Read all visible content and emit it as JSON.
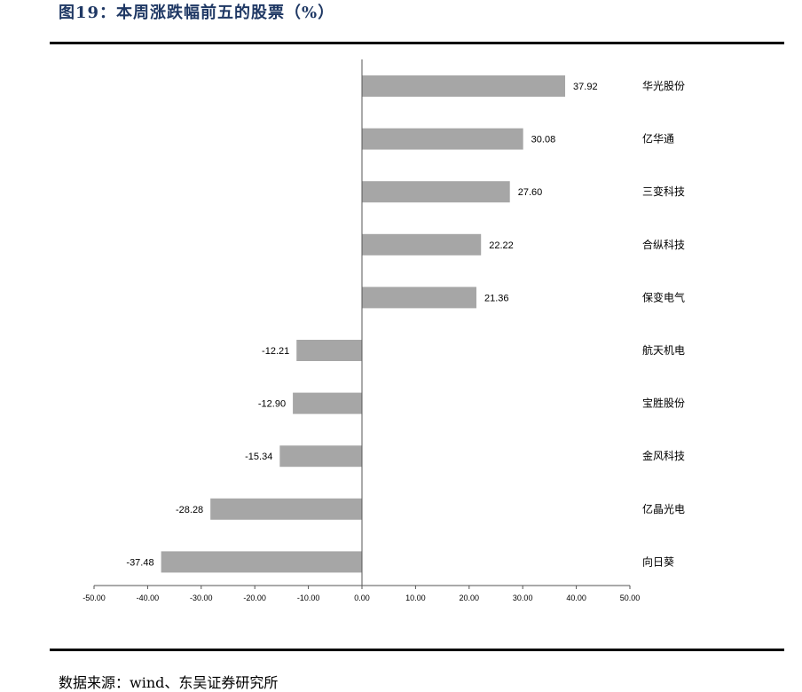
{
  "figure": {
    "title": "图19：本周涨跌幅前五的股票（%）",
    "source": "数据来源：wind、东吴证券研究所"
  },
  "chart_data": {
    "type": "bar",
    "orientation": "horizontal",
    "categories": [
      "华光股份",
      "亿华通",
      "三变科技",
      "合纵科技",
      "保变电气",
      "航天机电",
      "宝胜股份",
      "金风科技",
      "亿晶光电",
      "向日葵"
    ],
    "values": [
      37.92,
      30.08,
      27.6,
      22.22,
      21.36,
      -12.21,
      -12.9,
      -15.34,
      -28.28,
      -37.48
    ],
    "value_labels": [
      "37.92",
      "30.08",
      "27.60",
      "22.22",
      "21.36",
      "-12.21",
      "-12.90",
      "-15.34",
      "-28.28",
      "-37.48"
    ],
    "xlim": [
      -50,
      50
    ],
    "x_ticks": [
      -50,
      -40,
      -30,
      -20,
      -10,
      0,
      10,
      20,
      30,
      40,
      50
    ],
    "x_tick_labels": [
      "-50.00",
      "-40.00",
      "-30.00",
      "-20.00",
      "-10.00",
      "0.00",
      "10.00",
      "20.00",
      "30.00",
      "40.00",
      "50.00"
    ],
    "bar_color": "#a6a6a6",
    "grid": false,
    "legend": "none"
  }
}
